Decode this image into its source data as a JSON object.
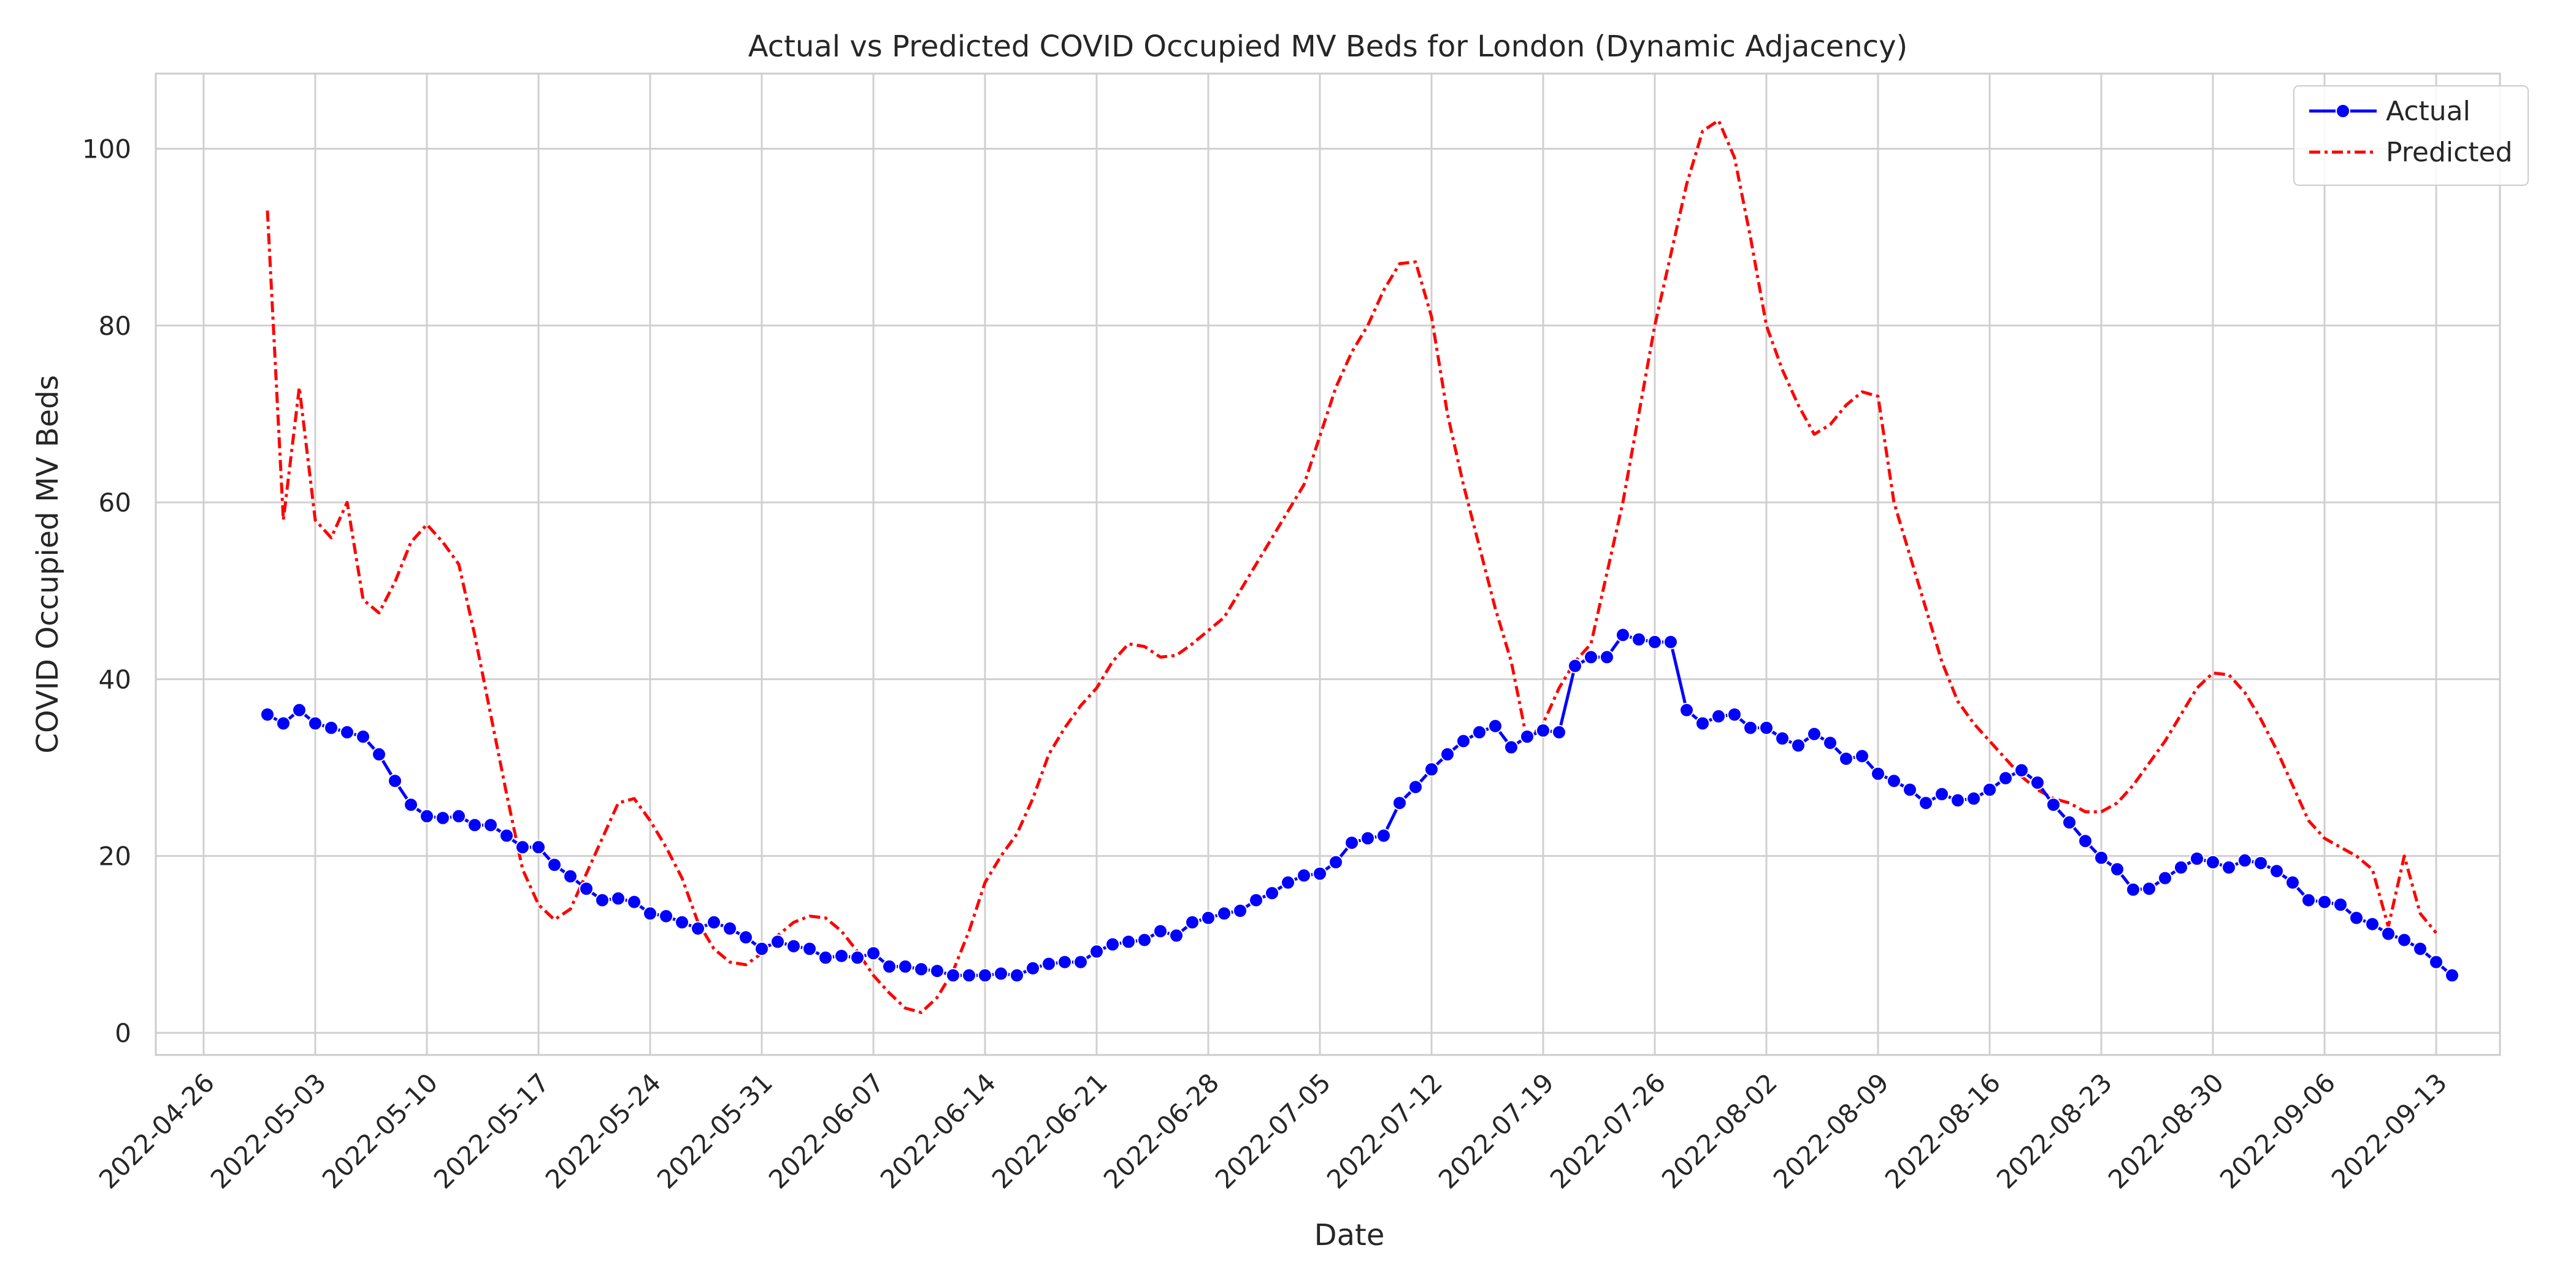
{
  "chart_data": {
    "type": "line",
    "title": "Actual vs Predicted COVID Occupied MV Beds for London (Dynamic Adjacency)",
    "xlabel": "Date",
    "ylabel": "COVID Occupied MV Beds",
    "x_start": "2022-04-30",
    "x_ticks": [
      "2022-04-26",
      "2022-05-03",
      "2022-05-10",
      "2022-05-17",
      "2022-05-24",
      "2022-05-31",
      "2022-06-07",
      "2022-06-14",
      "2022-06-21",
      "2022-06-28",
      "2022-07-05",
      "2022-07-12",
      "2022-07-19",
      "2022-07-26",
      "2022-08-02",
      "2022-08-09",
      "2022-08-16",
      "2022-08-23",
      "2022-08-30",
      "2022-09-06",
      "2022-09-13"
    ],
    "y_ticks": [
      0,
      20,
      40,
      60,
      80,
      100
    ],
    "xlim": [
      "2022-04-23",
      "2022-09-17"
    ],
    "ylim": [
      -2.5,
      108.5
    ],
    "grid": true,
    "legend_position": "top-right",
    "colors": {
      "actual": "#0000ff",
      "predicted": "#ff0000",
      "grid": "#d0d0d0",
      "axes": "#cccccc"
    },
    "series": [
      {
        "name": "Actual",
        "style": "solid line with circle markers",
        "values": [
          36.0,
          35.0,
          36.5,
          35.0,
          34.5,
          34.0,
          33.5,
          31.5,
          28.5,
          25.8,
          24.5,
          24.3,
          24.5,
          23.5,
          23.5,
          22.3,
          21.0,
          21.0,
          19.0,
          17.7,
          16.3,
          15.0,
          15.2,
          14.8,
          13.5,
          13.2,
          12.5,
          11.8,
          12.5,
          11.8,
          10.8,
          9.5,
          10.3,
          9.8,
          9.5,
          8.5,
          8.7,
          8.5,
          9.0,
          7.5,
          7.5,
          7.2,
          7.0,
          6.5,
          6.5,
          6.5,
          6.7,
          6.5,
          7.3,
          7.8,
          8.0,
          8.0,
          9.2,
          10.0,
          10.3,
          10.5,
          11.5,
          11.0,
          12.5,
          13.0,
          13.5,
          13.8,
          15.0,
          15.8,
          17.0,
          17.8,
          18.0,
          19.3,
          21.5,
          22.0,
          22.3,
          26.0,
          27.8,
          29.8,
          31.5,
          33.0,
          34.0,
          34.7,
          32.3,
          33.5,
          34.2,
          34.0,
          41.5,
          42.5,
          42.5,
          45.0,
          44.5,
          44.2,
          44.2,
          36.5,
          35.0,
          35.8,
          36.0,
          34.5,
          34.5,
          33.3,
          32.5,
          33.8,
          32.8,
          31.0,
          31.3,
          29.3,
          28.5,
          27.5,
          26.0,
          27.0,
          26.3,
          26.5,
          27.5,
          28.8,
          29.7,
          28.3,
          25.8,
          23.8,
          21.7,
          19.8,
          18.5,
          16.2,
          16.3,
          17.5,
          18.7,
          19.7,
          19.3,
          18.7,
          19.5,
          19.2,
          18.3,
          17.0,
          15.0,
          14.8,
          14.5,
          13.0,
          12.3,
          11.2,
          10.5,
          9.5,
          8.0,
          6.5
        ]
      },
      {
        "name": "Predicted",
        "style": "dash-dot line",
        "values": [
          93.0,
          58.0,
          73.0,
          58.0,
          56.0,
          60.0,
          49.0,
          47.5,
          51.0,
          55.5,
          57.5,
          55.5,
          53.0,
          45.0,
          36.0,
          27.0,
          18.5,
          14.5,
          12.8,
          14.0,
          18.0,
          22.0,
          26.0,
          26.5,
          24.0,
          21.0,
          17.5,
          12.5,
          9.5,
          8.0,
          7.7,
          9.0,
          11.0,
          12.5,
          13.2,
          13.0,
          11.5,
          9.2,
          6.5,
          4.5,
          2.8,
          2.3,
          4.0,
          7.0,
          11.5,
          17.0,
          20.0,
          22.5,
          26.5,
          31.5,
          34.5,
          37.0,
          39.0,
          42.0,
          44.0,
          43.7,
          42.5,
          42.7,
          44.0,
          45.5,
          47.0,
          50.0,
          53.0,
          56.0,
          59.0,
          62.0,
          67.5,
          73.0,
          77.0,
          80.0,
          84.0,
          87.0,
          87.2,
          81.0,
          70.0,
          62.0,
          55.0,
          48.0,
          42.0,
          33.0,
          35.0,
          39.0,
          42.0,
          44.0,
          52.0,
          60.0,
          70.0,
          80.0,
          88.0,
          96.0,
          102.0,
          103.2,
          99.0,
          90.0,
          80.0,
          75.0,
          71.0,
          67.7,
          68.8,
          71.0,
          72.5,
          72.0,
          60.0,
          54.0,
          48.0,
          42.0,
          37.5,
          35.0,
          33.0,
          31.0,
          29.0,
          27.5,
          26.5,
          26.0,
          25.0,
          25.0,
          26.0,
          28.0,
          30.5,
          33.0,
          36.0,
          39.0,
          40.7,
          40.5,
          38.5,
          35.5,
          32.0,
          28.0,
          24.0,
          22.0,
          21.0,
          20.0,
          18.5,
          12.0,
          20.0,
          13.5,
          11.3
        ]
      }
    ]
  }
}
